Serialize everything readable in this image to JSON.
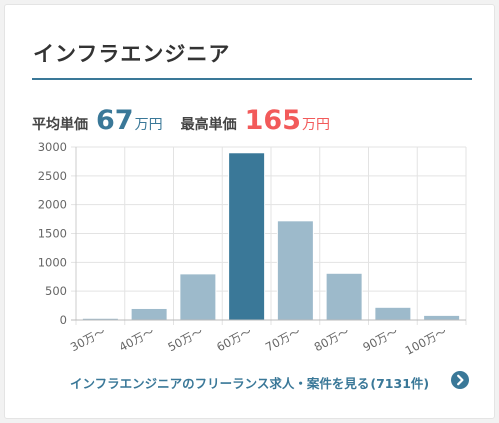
{
  "title": "インフラエンジニア",
  "stats": {
    "avg_label": "平均単価",
    "avg_value": "67",
    "avg_unit": "万円",
    "max_label": "最高単価",
    "max_value": "165",
    "max_unit": "万円"
  },
  "chart_data": {
    "type": "bar",
    "categories": [
      "30万～",
      "40万～",
      "50万～",
      "60万～",
      "70万～",
      "80万～",
      "90万～",
      "100万～"
    ],
    "values": [
      30,
      200,
      800,
      2900,
      1720,
      810,
      220,
      80
    ],
    "highlight_index": 3,
    "ylim": [
      0,
      3000
    ],
    "yticks": [
      0,
      500,
      1000,
      1500,
      2000,
      2500,
      3000
    ],
    "grid": true,
    "colors": {
      "bar": "#9dbacb",
      "highlight": "#3a7898",
      "bar_border": "#ffffff"
    }
  },
  "footer": {
    "link_text": "インフラエンジニアのフリーランス求人・案件を見る",
    "count_text": "(7131件)",
    "arrow_icon": "chevron-right-circle-icon"
  }
}
